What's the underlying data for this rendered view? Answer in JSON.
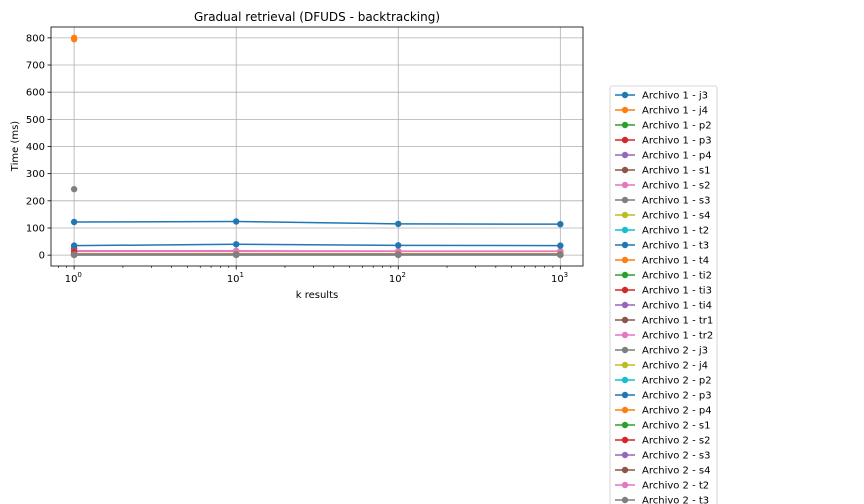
{
  "chart_data": {
    "type": "line",
    "title": "Gradual retrieval (DFUDS - backtracking)",
    "xlabel": "k results",
    "ylabel": "Time (ms)",
    "xscale": "log",
    "x": [
      1,
      10,
      100,
      1000
    ],
    "xlim": [
      0.72,
      1380
    ],
    "ylim": [
      -40,
      840
    ],
    "x_ticks": [
      {
        "value": 1,
        "base": "10",
        "exp": "0"
      },
      {
        "value": 10,
        "base": "10",
        "exp": "1"
      },
      {
        "value": 100,
        "base": "10",
        "exp": "2"
      },
      {
        "value": 1000,
        "base": "10",
        "exp": "3"
      }
    ],
    "y_ticks": [
      0,
      100,
      200,
      300,
      400,
      500,
      600,
      700,
      800
    ],
    "grid": true,
    "legend_placement": "right-outside",
    "series": [
      {
        "name": "Archivo 1 - j3",
        "color": "#1f77b4",
        "values": [
          1.5,
          1.5,
          1.5,
          1.5
        ]
      },
      {
        "name": "Archivo 1 - j4",
        "color": "#ff7f0e",
        "values": [
          800,
          null,
          null,
          null
        ]
      },
      {
        "name": "Archivo 1 - p2",
        "color": "#2ca02c",
        "values": [
          1,
          1,
          1,
          1
        ]
      },
      {
        "name": "Archivo 1 - p3",
        "color": "#d62728",
        "values": [
          2,
          2,
          2,
          2
        ]
      },
      {
        "name": "Archivo 1 - p4",
        "color": "#9467bd",
        "values": [
          2.5,
          2.5,
          2.5,
          2.5
        ]
      },
      {
        "name": "Archivo 1 - s1",
        "color": "#8c564b",
        "values": [
          3,
          3,
          3,
          3
        ]
      },
      {
        "name": "Archivo 1 - s2",
        "color": "#e377c2",
        "values": [
          16,
          16,
          15,
          15
        ]
      },
      {
        "name": "Archivo 1 - s3",
        "color": "#7f7f7f",
        "values": [
          243,
          null,
          null,
          null
        ]
      },
      {
        "name": "Archivo 1 - s4",
        "color": "#bcbd22",
        "values": [
          4,
          4,
          4,
          4
        ]
      },
      {
        "name": "Archivo 1 - t2",
        "color": "#17becf",
        "values": [
          1,
          1,
          1,
          1
        ]
      },
      {
        "name": "Archivo 1 - t3",
        "color": "#1f77b4",
        "values": [
          122,
          124,
          115,
          114
        ]
      },
      {
        "name": "Archivo 1 - t4",
        "color": "#ff7f0e",
        "values": [
          795,
          null,
          null,
          null
        ]
      },
      {
        "name": "Archivo 1 - ti2",
        "color": "#2ca02c",
        "values": [
          1,
          1,
          1,
          1
        ]
      },
      {
        "name": "Archivo 1 - ti3",
        "color": "#d62728",
        "values": [
          24,
          null,
          null,
          null
        ]
      },
      {
        "name": "Archivo 1 - ti4",
        "color": "#9467bd",
        "values": [
          3,
          3,
          3,
          3
        ]
      },
      {
        "name": "Archivo 1 - tr1",
        "color": "#8c564b",
        "values": [
          2,
          2,
          2,
          2
        ]
      },
      {
        "name": "Archivo 1 - tr2",
        "color": "#e377c2",
        "values": [
          14,
          14,
          14,
          14
        ]
      },
      {
        "name": "Archivo 2 - j3",
        "color": "#7f7f7f",
        "values": [
          2,
          2,
          2,
          2
        ]
      },
      {
        "name": "Archivo 2 - j4",
        "color": "#bcbd22",
        "values": [
          5,
          5,
          5,
          5
        ]
      },
      {
        "name": "Archivo 2 - p2",
        "color": "#17becf",
        "values": [
          1,
          1,
          1,
          1
        ]
      },
      {
        "name": "Archivo 2 - p3",
        "color": "#1f77b4",
        "values": [
          35,
          40,
          36,
          35
        ]
      },
      {
        "name": "Archivo 2 - p4",
        "color": "#ff7f0e",
        "values": [
          4,
          4,
          4,
          4
        ]
      },
      {
        "name": "Archivo 2 - s1",
        "color": "#2ca02c",
        "values": [
          1,
          1,
          1,
          1
        ]
      },
      {
        "name": "Archivo 2 - s2",
        "color": "#d62728",
        "values": [
          12,
          null,
          null,
          null
        ]
      },
      {
        "name": "Archivo 2 - s3",
        "color": "#9467bd",
        "values": [
          3,
          3,
          3,
          3
        ]
      },
      {
        "name": "Archivo 2 - s4",
        "color": "#8c564b",
        "values": [
          2,
          2,
          2,
          2
        ]
      },
      {
        "name": "Archivo 2 - t2",
        "color": "#e377c2",
        "values": [
          1,
          1,
          1,
          1
        ]
      },
      {
        "name": "Archivo 2 - t3",
        "color": "#7f7f7f",
        "values": [
          2,
          2,
          2,
          2
        ]
      }
    ]
  }
}
